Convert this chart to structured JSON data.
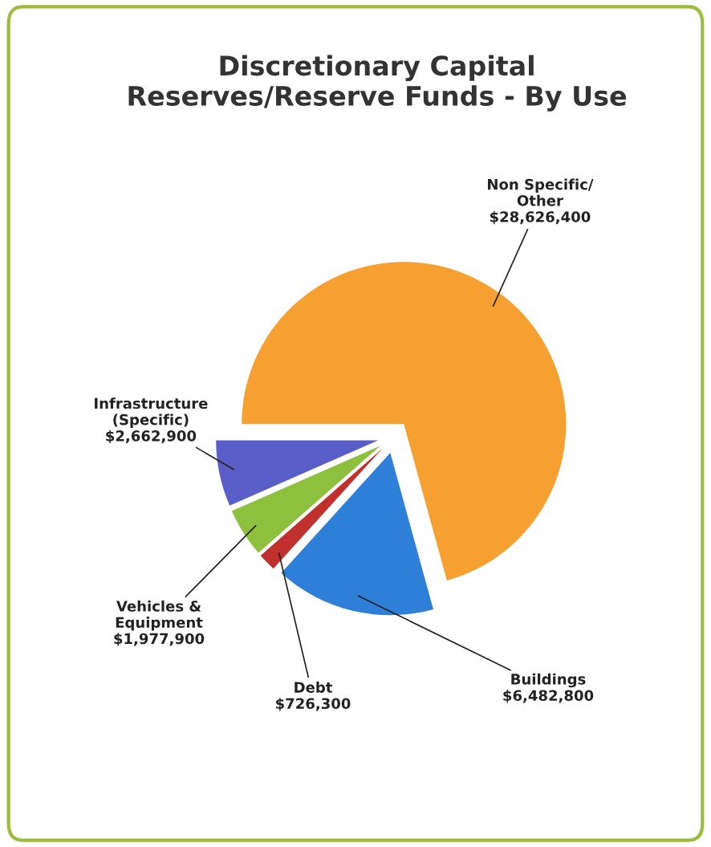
{
  "chart_data": {
    "type": "pie",
    "title": "Discretionary Capital\nReserves/Reserve Funds - By Use",
    "categories": [
      "Non Specific/\nOther",
      "Buildings",
      "Debt",
      "Vehicles &\nEquipment",
      "Infrastructure\n(Specific)"
    ],
    "values": [
      28626400,
      6482800,
      726300,
      1977900,
      2662900
    ],
    "value_labels": [
      "$28,626,400",
      "$6,482,800",
      "$726,300",
      "$1,977,900",
      "$2,662,900"
    ],
    "colors": [
      "#f5a030",
      "#2e7fd8",
      "#c0302c",
      "#8dc03c",
      "#5a5ec8"
    ],
    "legend": false
  }
}
